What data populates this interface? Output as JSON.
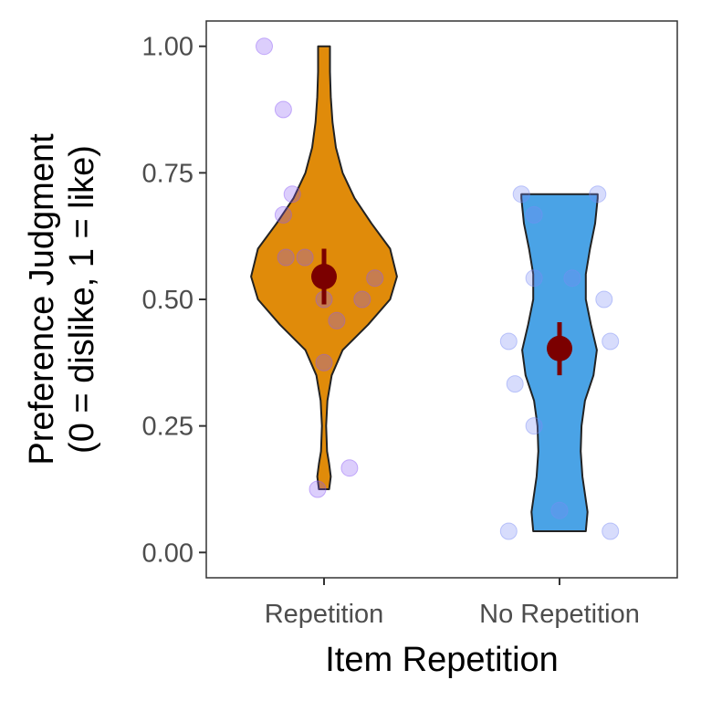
{
  "chart_data": {
    "type": "violin",
    "xlabel": "Item Repetition",
    "ylabel_lines": [
      "Preference Judgment",
      "(0 = dislike, 1 = like)"
    ],
    "ylim": [
      -0.05,
      1.05
    ],
    "yticks": [
      0.0,
      0.25,
      0.5,
      0.75,
      1.0
    ],
    "ytick_labels": [
      "0.00",
      "0.25",
      "0.50",
      "0.75",
      "1.00"
    ],
    "categories": [
      "Repetition",
      "No Repetition"
    ],
    "grid": false,
    "series": [
      {
        "category": "Repetition",
        "fill": "#E08B0A",
        "point_color": "#8B5CF6",
        "mean": 0.545,
        "ci": [
          0.49,
          0.6
        ],
        "points": [
          1.0,
          0.875,
          0.708,
          0.667,
          0.583,
          0.583,
          0.5,
          0.5,
          0.542,
          0.458,
          0.375,
          0.167,
          0.125
        ],
        "violin_profile": [
          [
            0.125,
            0.06
          ],
          [
            0.15,
            0.08
          ],
          [
            0.175,
            0.06
          ],
          [
            0.2,
            0.035
          ],
          [
            0.25,
            0.025
          ],
          [
            0.3,
            0.04
          ],
          [
            0.35,
            0.09
          ],
          [
            0.4,
            0.22
          ],
          [
            0.45,
            0.52
          ],
          [
            0.5,
            0.78
          ],
          [
            0.545,
            0.86
          ],
          [
            0.6,
            0.78
          ],
          [
            0.65,
            0.56
          ],
          [
            0.7,
            0.36
          ],
          [
            0.75,
            0.22
          ],
          [
            0.8,
            0.14
          ],
          [
            0.85,
            0.1
          ],
          [
            0.9,
            0.08
          ],
          [
            0.95,
            0.07
          ],
          [
            1.0,
            0.07
          ]
        ]
      },
      {
        "category": "No Repetition",
        "fill": "#4AA3E6",
        "point_color": "#7B8CF6",
        "mean": 0.403,
        "ci": [
          0.35,
          0.455
        ],
        "points": [
          0.708,
          0.708,
          0.667,
          0.542,
          0.542,
          0.5,
          0.417,
          0.417,
          0.333,
          0.25,
          0.083,
          0.042,
          0.042
        ],
        "violin_profile": [
          [
            0.042,
            0.31
          ],
          [
            0.08,
            0.33
          ],
          [
            0.15,
            0.27
          ],
          [
            0.2,
            0.25
          ],
          [
            0.25,
            0.26
          ],
          [
            0.3,
            0.3
          ],
          [
            0.35,
            0.4
          ],
          [
            0.4,
            0.44
          ],
          [
            0.45,
            0.37
          ],
          [
            0.5,
            0.31
          ],
          [
            0.55,
            0.31
          ],
          [
            0.6,
            0.36
          ],
          [
            0.65,
            0.42
          ],
          [
            0.7,
            0.45
          ],
          [
            0.708,
            0.45
          ]
        ]
      }
    ],
    "point_jitter": [
      [
        0.03,
        0.18,
        0.25,
        0.18,
        0.35,
        0.2,
        0.8,
        0.5,
        0.9,
        0.6,
        0.5,
        0.7,
        0.45
      ],
      [
        0.8,
        0.2,
        0.3,
        0.6,
        0.3,
        0.85,
        0.9,
        0.1,
        0.15,
        0.3,
        0.5,
        0.9,
        0.1
      ]
    ],
    "mean_color": "#7B0000"
  }
}
